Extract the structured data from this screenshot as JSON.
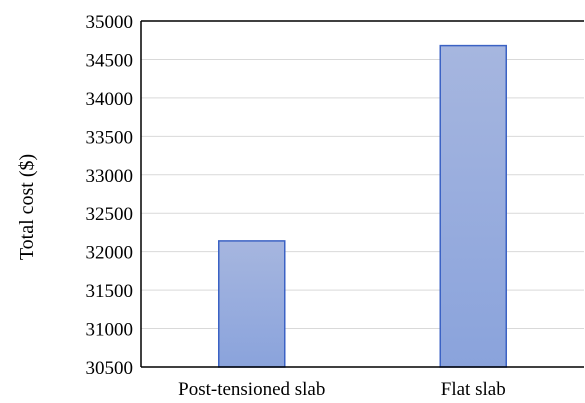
{
  "chart_data": {
    "type": "bar",
    "categories": [
      "Post-tensioned slab",
      "Flat slab"
    ],
    "values": [
      32140,
      34680
    ],
    "title": "",
    "xlabel": "",
    "ylabel": "Total cost ($)",
    "ylim": [
      30500,
      35000
    ],
    "yticks": [
      30500,
      31000,
      31500,
      32000,
      32500,
      33000,
      33500,
      34000,
      34500,
      35000
    ],
    "grid": true,
    "bar_fill_top": "#a6b6df",
    "bar_fill_bottom": "#8aa3dc",
    "bar_stroke": "#3b62c4",
    "grid_color": "#d9d9d9"
  }
}
